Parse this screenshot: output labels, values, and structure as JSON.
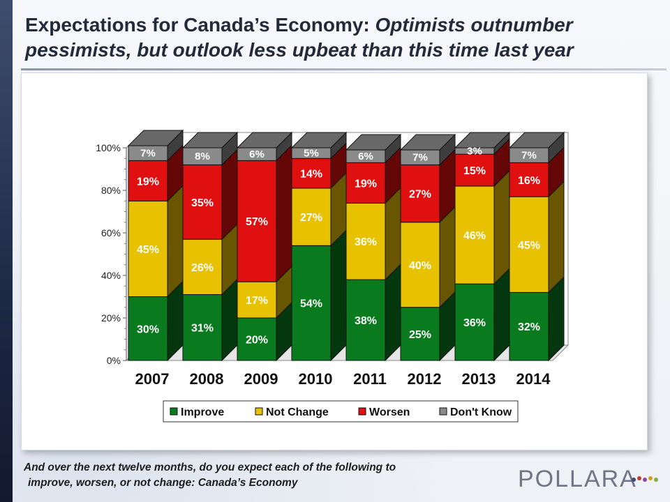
{
  "title": {
    "main": "Expectations for Canada’s Economy:",
    "sub": "Optimists outnumber pessimists, but outlook less upbeat than this time last year"
  },
  "question": {
    "line1": "And over the next twelve months, do you expect each of the following to",
    "line2": "improve, worsen, or not change: Canada’s Economy"
  },
  "logo": {
    "text": "POLLARA"
  },
  "chart_data": {
    "type": "bar",
    "stacked": true,
    "categories": [
      "2007",
      "2008",
      "2009",
      "2010",
      "2011",
      "2012",
      "2013",
      "2014"
    ],
    "series": [
      {
        "name": "Improve",
        "color": "#0a7a1f",
        "values": [
          30,
          31,
          20,
          54,
          38,
          25,
          36,
          32
        ]
      },
      {
        "name": "Not Change",
        "color": "#e8c200",
        "values": [
          45,
          26,
          17,
          27,
          36,
          40,
          46,
          45
        ]
      },
      {
        "name": "Worsen",
        "color": "#e01010",
        "values": [
          19,
          35,
          57,
          14,
          19,
          27,
          15,
          16
        ]
      },
      {
        "name": "Don't Know",
        "color": "#8a8a8a",
        "values": [
          7,
          8,
          6,
          5,
          6,
          7,
          3,
          7
        ]
      }
    ],
    "ylim": [
      0,
      100
    ],
    "yticks": [
      "0%",
      "20%",
      "40%",
      "60%",
      "80%",
      "100%"
    ],
    "legend": "bottom",
    "three_d": true
  }
}
